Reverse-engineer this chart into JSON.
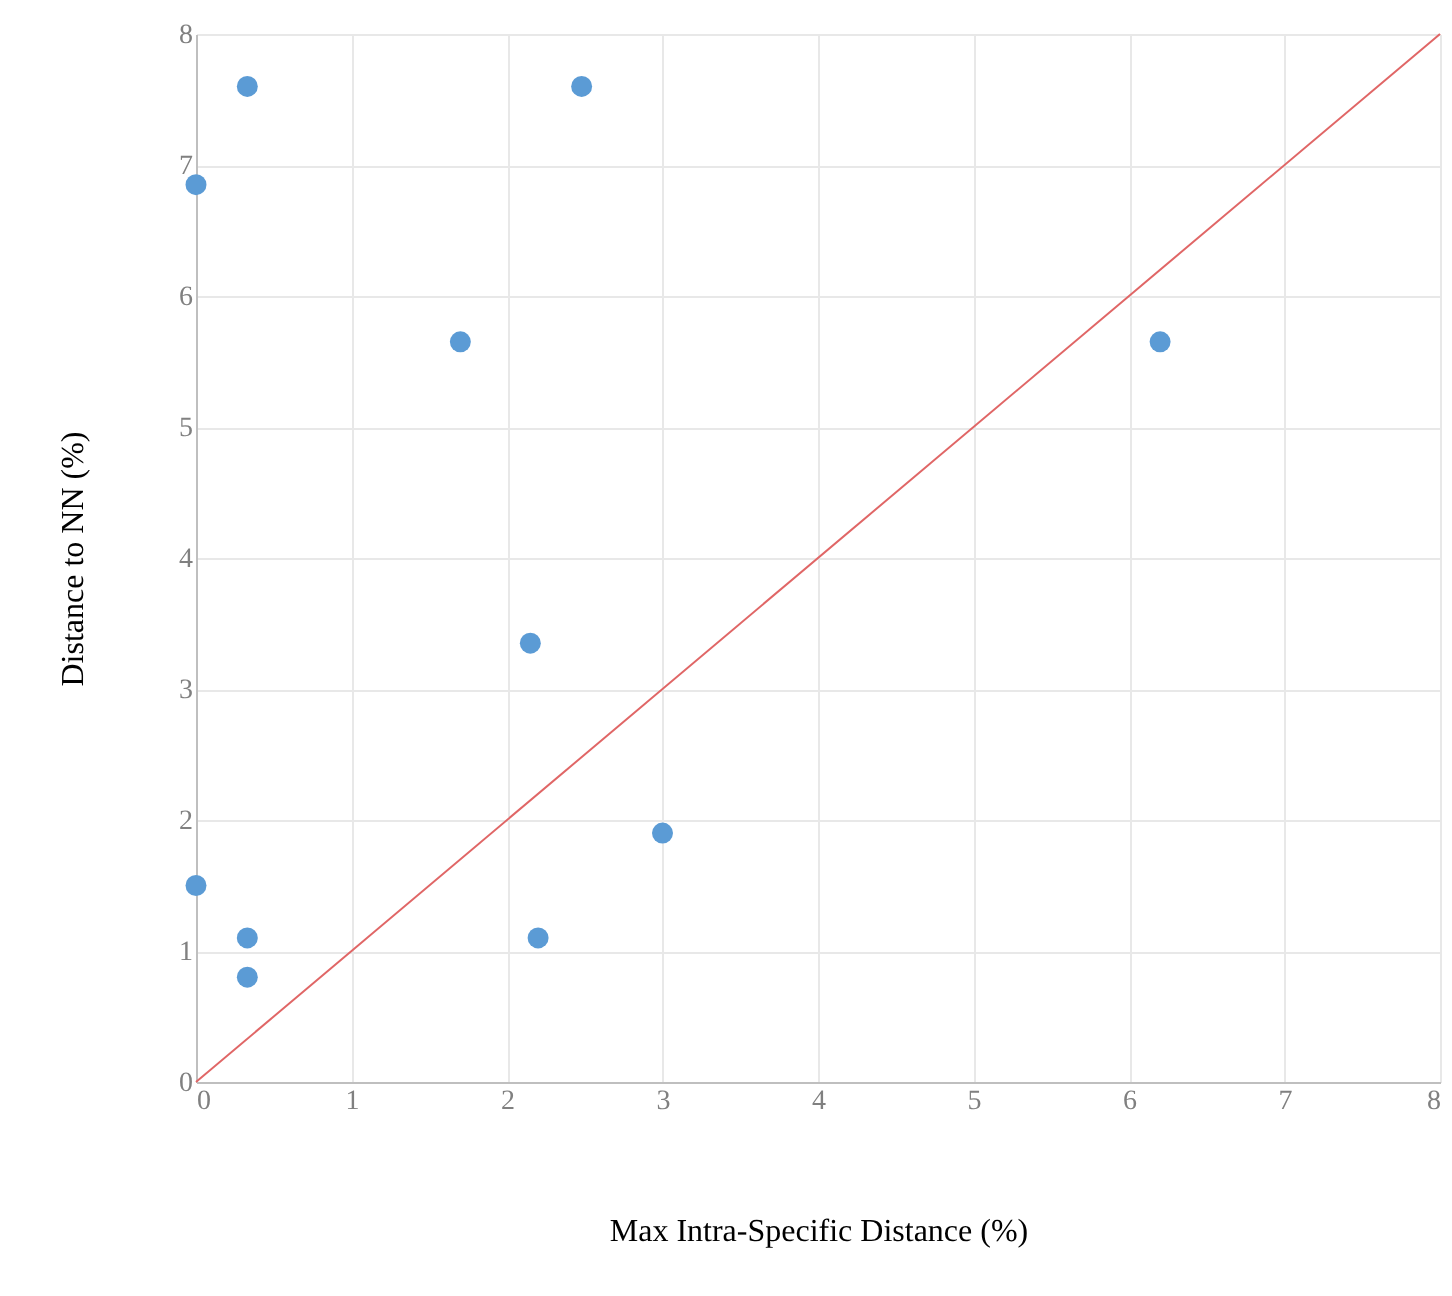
{
  "chart_data": {
    "type": "scatter",
    "xlabel": "Max Intra-Specific Distance (%)",
    "ylabel": "Distance to NN (%)",
    "xlim": [
      0,
      8
    ],
    "ylim": [
      0,
      8
    ],
    "xticks": [
      0,
      1,
      2,
      3,
      4,
      5,
      6,
      7,
      8
    ],
    "yticks": [
      0,
      1,
      2,
      3,
      4,
      5,
      6,
      7,
      8
    ],
    "grid": true,
    "series": [
      {
        "color": "#5b9bd5",
        "marker": "circle",
        "x": [
          0,
          0.33,
          2.48,
          1.7,
          6.2,
          2.15,
          0,
          0.33,
          0.33,
          2.2,
          3
        ],
        "values": [
          6.85,
          7.6,
          7.6,
          5.65,
          5.65,
          3.35,
          1.5,
          1.1,
          0.8,
          1.1,
          1.9
        ]
      },
      {
        "type": "line",
        "color": "#e06666",
        "line_style": "solid",
        "x": [
          0,
          8
        ],
        "values": [
          0,
          8
        ]
      }
    ]
  }
}
